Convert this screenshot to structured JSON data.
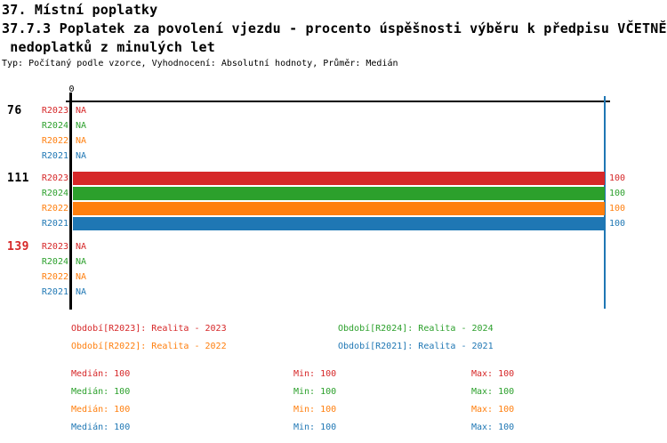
{
  "header": {
    "line1": "37. Místní poplatky",
    "line2": "37.7.3 Poplatek za povolení vjezdu - procento úspěšnosti výběru k předpisu VČETNĚ",
    "line3": " nedoplatků z minulých let",
    "subtitle": "Typ: Počítaný podle vzorce, Vyhodnocení: Absolutní hodnoty, Průměr: Medián"
  },
  "chart_data": {
    "type": "bar",
    "orientation": "horizontal",
    "xlim": [
      0,
      100
    ],
    "x_axis_ticks": [
      "0"
    ],
    "reference_line_value": 100,
    "reference_line_color": "#1f77b4",
    "axis_color": "#000000",
    "highlight_color": "#d62728",
    "series_colors": {
      "R2023": "#d62728",
      "R2024": "#2ca02c",
      "R2022": "#ff7f0e",
      "R2021": "#1f77b4"
    },
    "groups": [
      {
        "id": "76",
        "highlight": false,
        "bars": [
          {
            "series": "R2023",
            "value": null,
            "display": "NA"
          },
          {
            "series": "R2024",
            "value": null,
            "display": "NA"
          },
          {
            "series": "R2022",
            "value": null,
            "display": "NA"
          },
          {
            "series": "R2021",
            "value": null,
            "display": "NA"
          }
        ]
      },
      {
        "id": "111",
        "highlight": false,
        "bars": [
          {
            "series": "R2023",
            "value": 100,
            "display": "100"
          },
          {
            "series": "R2024",
            "value": 100,
            "display": "100"
          },
          {
            "series": "R2022",
            "value": 100,
            "display": "100"
          },
          {
            "series": "R2021",
            "value": 100,
            "display": "100"
          }
        ]
      },
      {
        "id": "139",
        "highlight": true,
        "bars": [
          {
            "series": "R2023",
            "value": null,
            "display": "NA"
          },
          {
            "series": "R2024",
            "value": null,
            "display": "NA"
          },
          {
            "series": "R2022",
            "value": null,
            "display": "NA"
          },
          {
            "series": "R2021",
            "value": null,
            "display": "NA"
          }
        ]
      }
    ],
    "legend": [
      {
        "series": "R2023",
        "text": "Období[R2023]: Realita - 2023"
      },
      {
        "series": "R2024",
        "text": "Období[R2024]: Realita - 2024"
      },
      {
        "series": "R2022",
        "text": "Období[R2022]: Realita - 2022"
      },
      {
        "series": "R2021",
        "text": "Období[R2021]: Realita - 2021"
      }
    ],
    "stats": [
      {
        "series": "R2023",
        "median": "Medián: 100",
        "min": "Min: 100",
        "max": "Max: 100"
      },
      {
        "series": "R2024",
        "median": "Medián: 100",
        "min": "Min: 100",
        "max": "Max: 100"
      },
      {
        "series": "R2022",
        "median": "Medián: 100",
        "min": "Min: 100",
        "max": "Max: 100"
      },
      {
        "series": "R2021",
        "median": "Medián: 100",
        "min": "Min: 100",
        "max": "Max: 100"
      }
    ]
  }
}
